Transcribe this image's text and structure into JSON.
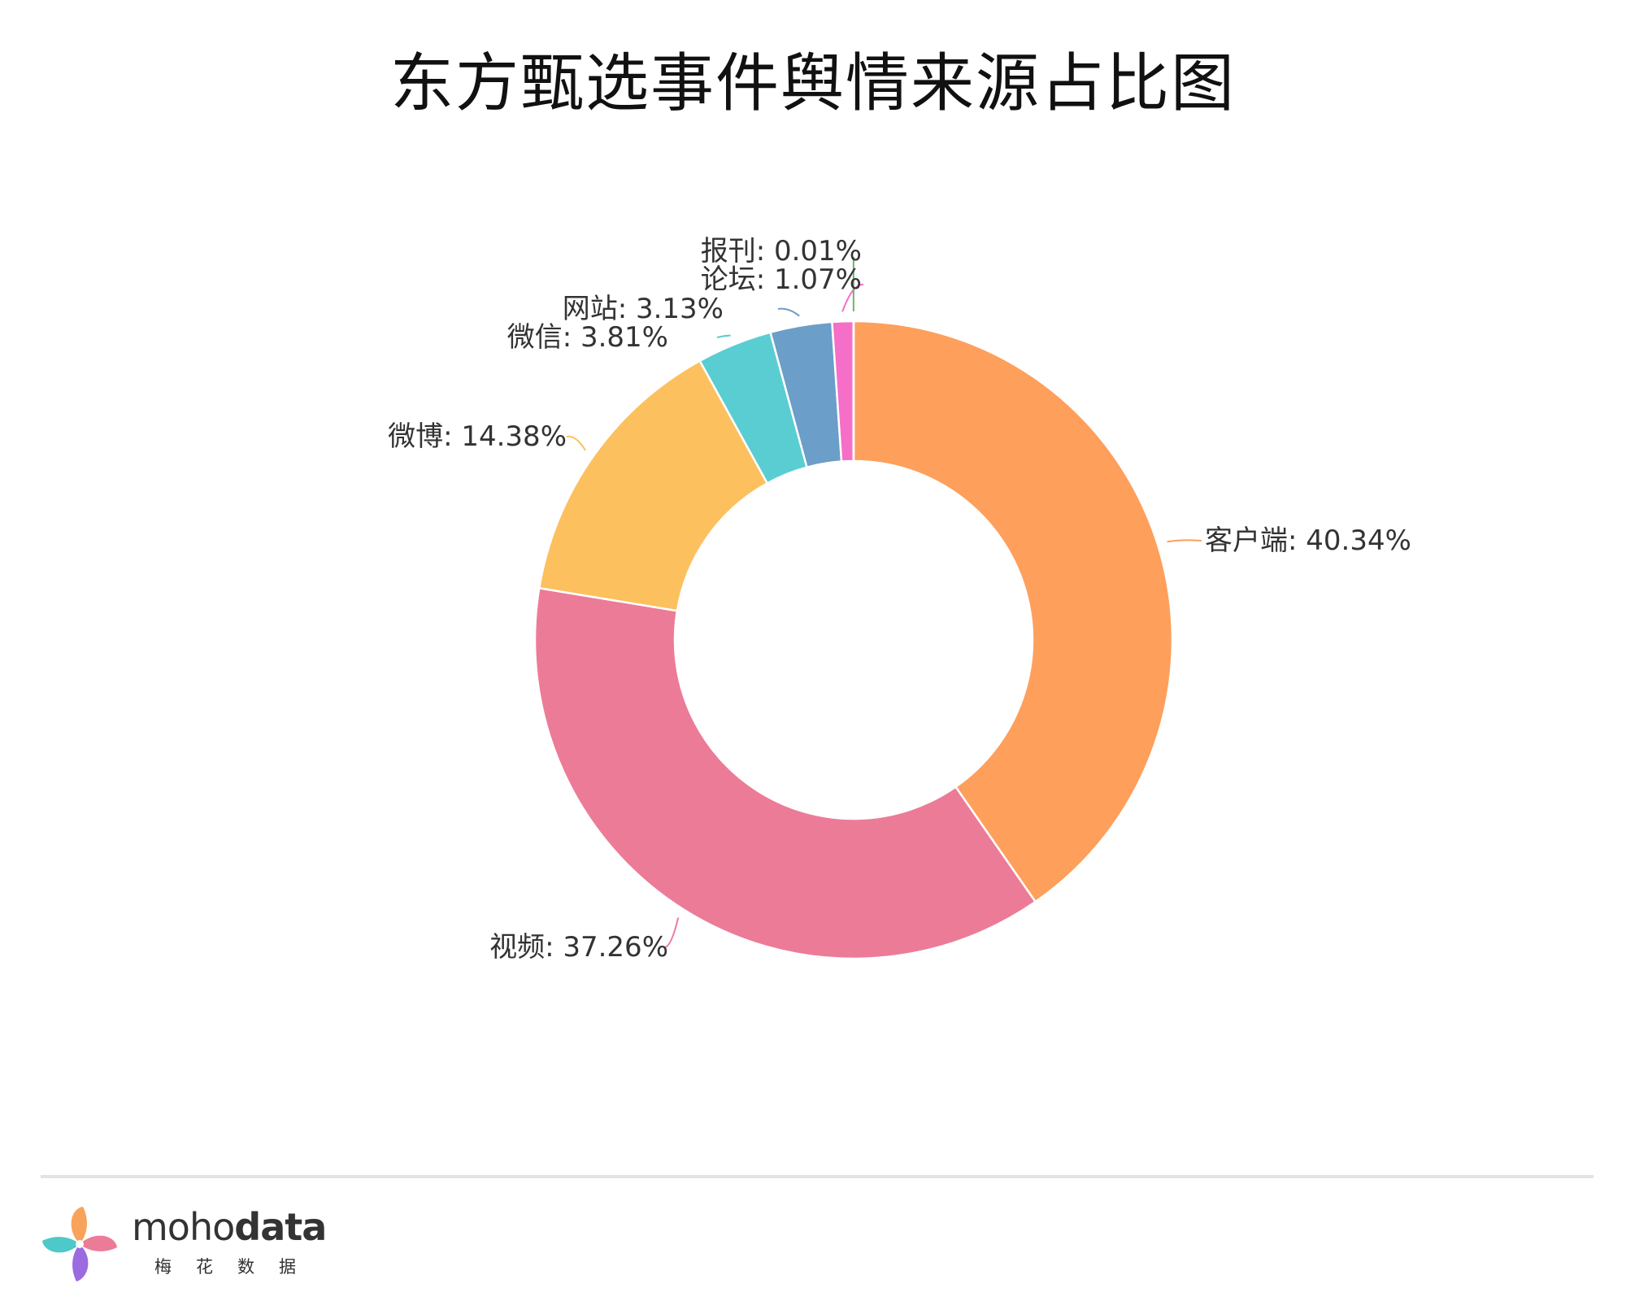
{
  "chart_data": {
    "type": "pie",
    "title": "东方甄选事件舆情来源占比图",
    "donut": true,
    "label_format": "{name}: {value}%",
    "slices": [
      {
        "name": "客户端",
        "value": 40.34,
        "color": "#fe9f5c"
      },
      {
        "name": "视频",
        "value": 37.26,
        "color": "#ec7b98"
      },
      {
        "name": "微博",
        "value": 14.38,
        "color": "#fdc05f"
      },
      {
        "name": "微信",
        "value": 3.81,
        "color": "#5acdd2"
      },
      {
        "name": "网站",
        "value": 3.13,
        "color": "#6b9ec8"
      },
      {
        "name": "论坛",
        "value": 1.07,
        "color": "#f56ec8"
      },
      {
        "name": "报刊",
        "value": 0.01,
        "color": "#6db56d"
      }
    ]
  },
  "brand": {
    "name_light": "moho",
    "name_bold": "data",
    "subtitle": "梅花数据"
  }
}
